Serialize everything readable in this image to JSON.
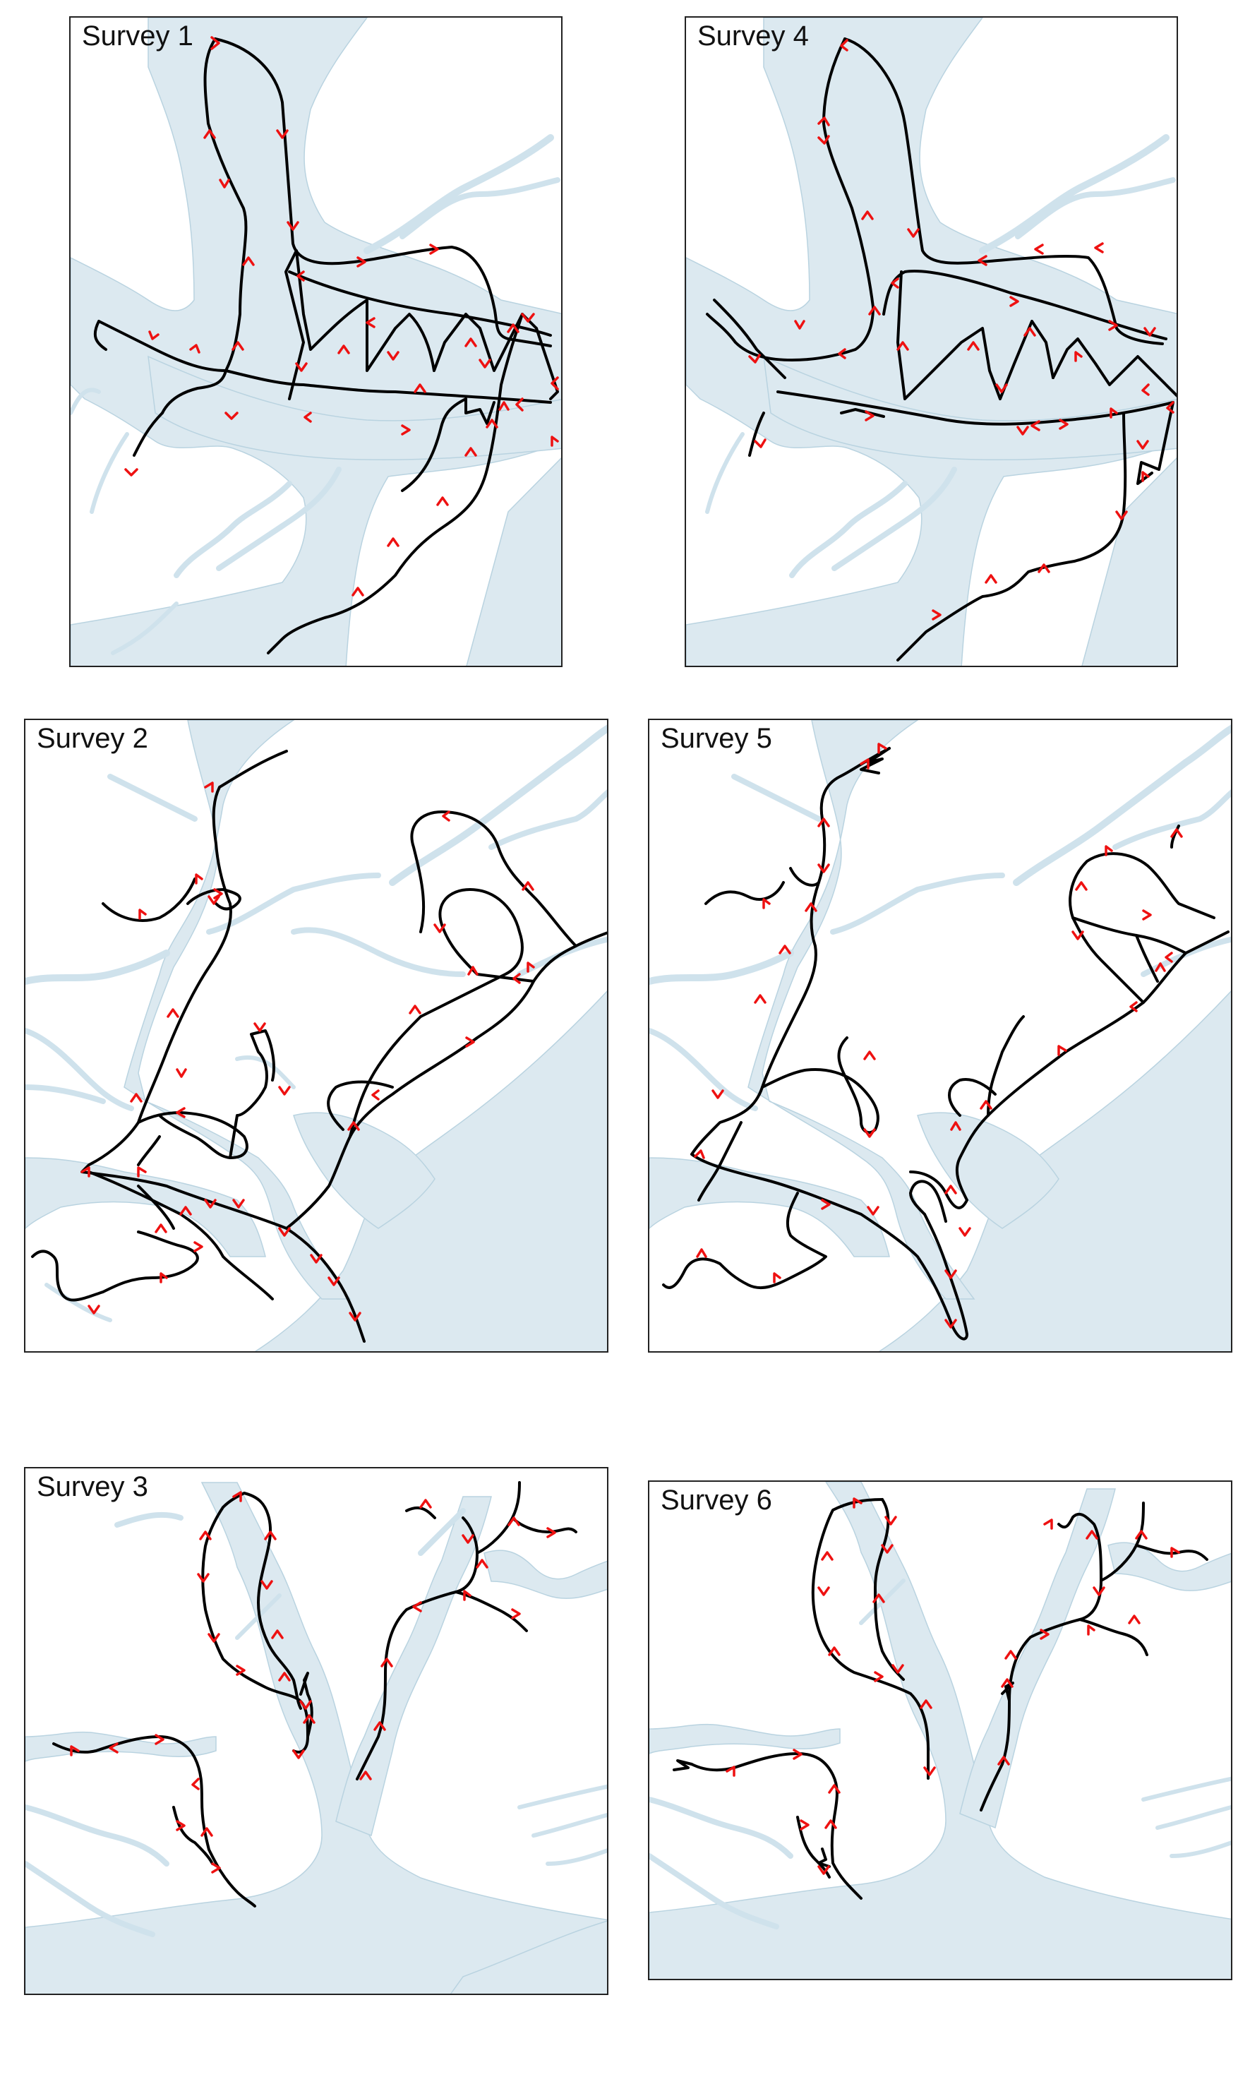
{
  "colors": {
    "water": "#dce9f0",
    "track": "#000000",
    "arrow": "#ee1111",
    "frame": "#222222"
  },
  "panels": [
    {
      "id": "s1",
      "title": "Survey 1"
    },
    {
      "id": "s4",
      "title": "Survey 4"
    },
    {
      "id": "s2",
      "title": "Survey 2"
    },
    {
      "id": "s5",
      "title": "Survey 5"
    },
    {
      "id": "s3",
      "title": "Survey 3"
    },
    {
      "id": "s6",
      "title": "Survey 6"
    }
  ]
}
